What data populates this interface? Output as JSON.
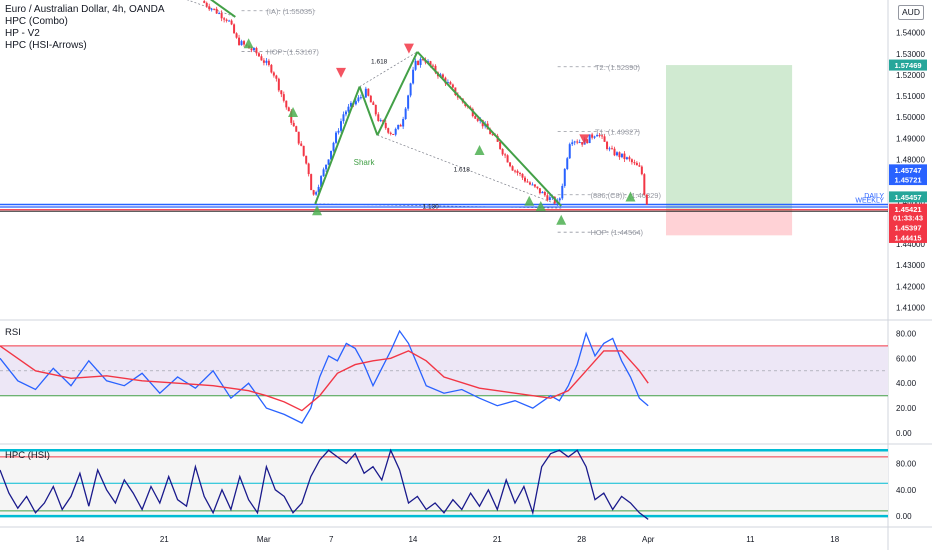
{
  "header": {
    "symbol": "Euro / Australian Dollar, 4h, OANDA",
    "indicators": [
      "HPC (Combo)",
      "HP - V2",
      "HPC (HSI-Arrows)"
    ],
    "currency": "AUD"
  },
  "colors": {
    "up_candle": "#2962ff",
    "down_candle": "#f23645",
    "pattern_line": "#43a047",
    "rsi_line": "#2962ff",
    "rsi_ma": "#f23645",
    "hsi_line": "#1a1a8c",
    "band_cyan": "#00bcd4",
    "long_target": "#c8e6c9",
    "short_stop": "#ffcdd2"
  },
  "chart_data": [
    {
      "type": "candlestick",
      "title": "Euro / Australian Dollar, 4h, OANDA",
      "x_tick_labels": [
        "14",
        "21",
        "Mar",
        "7",
        "14",
        "21",
        "28",
        "Apr",
        "11",
        "18"
      ],
      "y_tick_labels": [
        "1.54000",
        "1.53000",
        "1.52000",
        "1.51000",
        "1.50000",
        "1.49000",
        "1.48000",
        "1.47000",
        "1.46000",
        "1.45000",
        "1.44000",
        "1.43000",
        "1.42000",
        "1.41000"
      ],
      "ylim": [
        1.4045,
        1.5555
      ],
      "path_points": [
        {
          "x": 0,
          "y": 1.58
        },
        {
          "x": 0.16,
          "y": 1.57
        },
        {
          "x": 0.23,
          "y": 1.555
        },
        {
          "x": 0.26,
          "y": 1.546
        },
        {
          "x": 0.27,
          "y": 1.536
        },
        {
          "x": 0.29,
          "y": 1.531
        },
        {
          "x": 0.31,
          "y": 1.522
        },
        {
          "x": 0.325,
          "y": 1.505
        },
        {
          "x": 0.34,
          "y": 1.488
        },
        {
          "x": 0.35,
          "y": 1.475
        },
        {
          "x": 0.355,
          "y": 1.462
        },
        {
          "x": 0.365,
          "y": 1.472
        },
        {
          "x": 0.38,
          "y": 1.49
        },
        {
          "x": 0.39,
          "y": 1.502
        },
        {
          "x": 0.405,
          "y": 1.508
        },
        {
          "x": 0.415,
          "y": 1.512
        },
        {
          "x": 0.43,
          "y": 1.498
        },
        {
          "x": 0.445,
          "y": 1.492
        },
        {
          "x": 0.455,
          "y": 1.497
        },
        {
          "x": 0.47,
          "y": 1.525
        },
        {
          "x": 0.48,
          "y": 1.528
        },
        {
          "x": 0.49,
          "y": 1.523
        },
        {
          "x": 0.505,
          "y": 1.517
        },
        {
          "x": 0.52,
          "y": 1.509
        },
        {
          "x": 0.54,
          "y": 1.5
        },
        {
          "x": 0.56,
          "y": 1.49
        },
        {
          "x": 0.58,
          "y": 1.476
        },
        {
          "x": 0.6,
          "y": 1.468
        },
        {
          "x": 0.62,
          "y": 1.462
        },
        {
          "x": 0.632,
          "y": 1.459
        },
        {
          "x": 0.645,
          "y": 1.49
        },
        {
          "x": 0.66,
          "y": 1.488
        },
        {
          "x": 0.675,
          "y": 1.493
        },
        {
          "x": 0.69,
          "y": 1.484
        },
        {
          "x": 0.71,
          "y": 1.48
        },
        {
          "x": 0.725,
          "y": 1.475
        },
        {
          "x": 0.73,
          "y": 1.4595
        }
      ],
      "pattern_legs": [
        {
          "x": [
            0.23,
            0.265
          ],
          "y": [
            1.558,
            1.5475
          ]
        },
        {
          "x": [
            0.355,
            0.405
          ],
          "y": [
            1.459,
            1.5145
          ]
        },
        {
          "x": [
            0.405,
            0.425
          ],
          "y": [
            1.5145,
            1.4915
          ]
        },
        {
          "x": [
            0.425,
            0.47
          ],
          "y": [
            1.4915,
            1.531
          ]
        },
        {
          "x": [
            0.47,
            0.632
          ],
          "y": [
            1.531,
            1.458
          ]
        }
      ],
      "dashed_connectors": [
        {
          "x": [
            0.168,
            0.265
          ],
          "y": [
            1.562,
            1.5475
          ]
        },
        {
          "x": [
            0.405,
            0.47
          ],
          "y": [
            1.5145,
            1.531
          ]
        },
        {
          "x": [
            0.425,
            0.632
          ],
          "y": [
            1.4915,
            1.458
          ]
        },
        {
          "x": [
            0.355,
            0.632
          ],
          "y": [
            1.459,
            1.457
          ]
        }
      ],
      "up_arrows": [
        {
          "x": 0.228,
          "y": 1.558
        },
        {
          "x": 0.28,
          "y": 1.535
        },
        {
          "x": 0.33,
          "y": 1.5025
        },
        {
          "x": 0.357,
          "y": 1.456
        },
        {
          "x": 0.54,
          "y": 1.4845
        },
        {
          "x": 0.596,
          "y": 1.4605
        },
        {
          "x": 0.609,
          "y": 1.458
        },
        {
          "x": 0.632,
          "y": 1.4515
        },
        {
          "x": 0.71,
          "y": 1.4625
        }
      ],
      "down_arrows": [
        {
          "x": 0.384,
          "y": 1.521
        },
        {
          "x": 0.4605,
          "y": 1.5325
        },
        {
          "x": 0.658,
          "y": 1.4895
        }
      ],
      "ratio_labels": [
        {
          "text": "1.618",
          "x": 0.427,
          "y": 1.5255
        },
        {
          "text": "1.618",
          "x": 0.52,
          "y": 1.4743
        },
        {
          "text": "1.130",
          "x": 0.485,
          "y": 1.4569
        }
      ],
      "pattern_name": {
        "text": "Shark",
        "x": 0.41,
        "y": 1.4775
      },
      "levels": [
        {
          "text": "(IA): (1.55035)",
          "x": [
            0.272,
            0.355
          ],
          "y": 1.5504,
          "label_x": 0.3
        },
        {
          "text": "HOP: (1.53107)",
          "x": [
            0.272,
            0.355
          ],
          "y": 1.5311,
          "label_x": 0.3
        },
        {
          "text": "T2: (1.52390)",
          "x": [
            0.628,
            0.72
          ],
          "y": 1.5239,
          "label_x": 0.67
        },
        {
          "text": "T1: (1.49327)",
          "x": [
            0.628,
            0.72
          ],
          "y": 1.4933,
          "label_x": 0.67
        },
        {
          "text": "(886,(C8)): (1.46329)",
          "x": [
            0.628,
            0.73
          ],
          "y": 1.4633,
          "label_x": 0.665
        },
        {
          "text": "HOP: (1.44564)",
          "x": [
            0.628,
            0.72
          ],
          "y": 1.4456,
          "label_x": 0.665
        }
      ],
      "horizontal_lines": [
        {
          "y": 1.4587,
          "color": "#2962ff",
          "width": 1.6
        },
        {
          "y": 1.4575,
          "color": "#2962ff",
          "width": 1.2
        },
        {
          "y": 1.4562,
          "color": "#f23645",
          "width": 1.2
        },
        {
          "y": 1.4555,
          "color": "#2b2b2b",
          "width": 1.0
        }
      ],
      "right_labels": [
        {
          "text": "DAILY",
          "y": 1.4617
        },
        {
          "text": "WEEKLY",
          "y": 1.4597
        }
      ],
      "target_box": {
        "x": [
          0.75,
          0.892
        ],
        "y": [
          1.4555,
          1.5247
        ]
      },
      "stop_box": {
        "x": [
          0.75,
          0.892
        ],
        "y": [
          1.4441,
          1.4555
        ]
      },
      "price_tags": [
        {
          "text": "1.57469",
          "y": 1.5247,
          "color": "#26a69a"
        },
        {
          "text": "1.45747",
          "y": 1.4751,
          "color": "#2962ff"
        },
        {
          "text": "1.45721",
          "y": 1.4705,
          "color": "#2962ff"
        },
        {
          "text": "1.45457",
          "y": 1.4623,
          "color": "#26a69a"
        },
        {
          "text": "1.45421",
          "y": 1.4565,
          "color": "#f23645"
        },
        {
          "text": "01:33:43",
          "y": 1.4525,
          "color": "#f23645"
        },
        {
          "text": "1.45397",
          "y": 1.4477,
          "color": "#f23645"
        },
        {
          "text": "1.44415",
          "y": 1.4431,
          "color": "#f23645"
        }
      ]
    },
    {
      "type": "line",
      "title": "RSI",
      "y_tick_labels": [
        "80.00",
        "60.00",
        "40.00",
        "20.00",
        "0.00"
      ],
      "ylim": [
        -8,
        90
      ],
      "band": [
        30,
        70
      ],
      "mid": 50,
      "series": [
        {
          "color": "#2962ff",
          "x": [
            0,
            0.02,
            0.04,
            0.06,
            0.08,
            0.1,
            0.12,
            0.14,
            0.16,
            0.18,
            0.2,
            0.22,
            0.24,
            0.26,
            0.28,
            0.3,
            0.32,
            0.34,
            0.35,
            0.36,
            0.37,
            0.38,
            0.39,
            0.4,
            0.41,
            0.42,
            0.43,
            0.44,
            0.45,
            0.46,
            0.47,
            0.48,
            0.5,
            0.52,
            0.54,
            0.56,
            0.58,
            0.6,
            0.62,
            0.63,
            0.64,
            0.65,
            0.66,
            0.67,
            0.68,
            0.69,
            0.7,
            0.71,
            0.72,
            0.73
          ],
          "y": [
            60,
            42,
            35,
            52,
            38,
            58,
            42,
            38,
            48,
            32,
            45,
            36,
            50,
            28,
            40,
            20,
            15,
            8,
            20,
            45,
            62,
            58,
            72,
            68,
            55,
            38,
            52,
            66,
            82,
            72,
            55,
            38,
            32,
            35,
            28,
            22,
            26,
            20,
            30,
            26,
            38,
            55,
            80,
            62,
            72,
            76,
            58,
            45,
            28,
            22
          ]
        },
        {
          "color": "#f23645",
          "x": [
            0,
            0.04,
            0.08,
            0.12,
            0.16,
            0.2,
            0.24,
            0.28,
            0.3,
            0.32,
            0.34,
            0.36,
            0.38,
            0.4,
            0.42,
            0.44,
            0.46,
            0.48,
            0.5,
            0.54,
            0.58,
            0.62,
            0.64,
            0.66,
            0.68,
            0.7,
            0.72,
            0.73
          ],
          "y": [
            70,
            50,
            44,
            46,
            42,
            40,
            38,
            34,
            30,
            25,
            18,
            30,
            48,
            55,
            58,
            60,
            66,
            58,
            45,
            36,
            32,
            28,
            34,
            50,
            66,
            66,
            50,
            40
          ]
        }
      ]
    },
    {
      "type": "line",
      "title": "HPC (HSI)",
      "y_tick_labels": [
        "80.00",
        "40.00",
        "0.00"
      ],
      "ylim": [
        -15,
        108
      ],
      "band": [
        0,
        100
      ],
      "hlines": [
        {
          "y": 90,
          "color": "#f23645"
        },
        {
          "y": 50,
          "color": "#00bcd4"
        },
        {
          "y": 8,
          "color": "#43a047"
        }
      ],
      "series": [
        {
          "color": "#1a1a8c",
          "x": [
            0,
            0.01,
            0.02,
            0.03,
            0.04,
            0.05,
            0.06,
            0.07,
            0.08,
            0.09,
            0.1,
            0.11,
            0.12,
            0.13,
            0.14,
            0.15,
            0.16,
            0.17,
            0.18,
            0.19,
            0.2,
            0.21,
            0.22,
            0.23,
            0.24,
            0.25,
            0.26,
            0.27,
            0.28,
            0.29,
            0.3,
            0.31,
            0.32,
            0.33,
            0.34,
            0.35,
            0.36,
            0.37,
            0.38,
            0.39,
            0.4,
            0.41,
            0.42,
            0.43,
            0.44,
            0.45,
            0.46,
            0.47,
            0.48,
            0.49,
            0.5,
            0.51,
            0.52,
            0.53,
            0.54,
            0.55,
            0.56,
            0.57,
            0.58,
            0.59,
            0.6,
            0.61,
            0.62,
            0.63,
            0.64,
            0.65,
            0.66,
            0.67,
            0.68,
            0.69,
            0.7,
            0.71,
            0.72,
            0.73
          ],
          "y": [
            70,
            35,
            12,
            30,
            5,
            20,
            45,
            10,
            30,
            65,
            15,
            70,
            40,
            20,
            55,
            35,
            10,
            45,
            20,
            60,
            25,
            15,
            75,
            30,
            5,
            40,
            10,
            60,
            25,
            5,
            75,
            40,
            30,
            5,
            20,
            60,
            85,
            100,
            90,
            80,
            95,
            65,
            75,
            55,
            100,
            70,
            20,
            30,
            10,
            20,
            5,
            25,
            10,
            35,
            15,
            40,
            10,
            55,
            20,
            45,
            5,
            75,
            95,
            100,
            90,
            100,
            75,
            25,
            35,
            10,
            30,
            20,
            5,
            -5
          ]
        }
      ]
    }
  ],
  "overlay_labels": [
    {
      "text": "1.54000",
      "y": 1.54
    },
    {
      "text": "1.53000",
      "y": 1.53
    }
  ]
}
